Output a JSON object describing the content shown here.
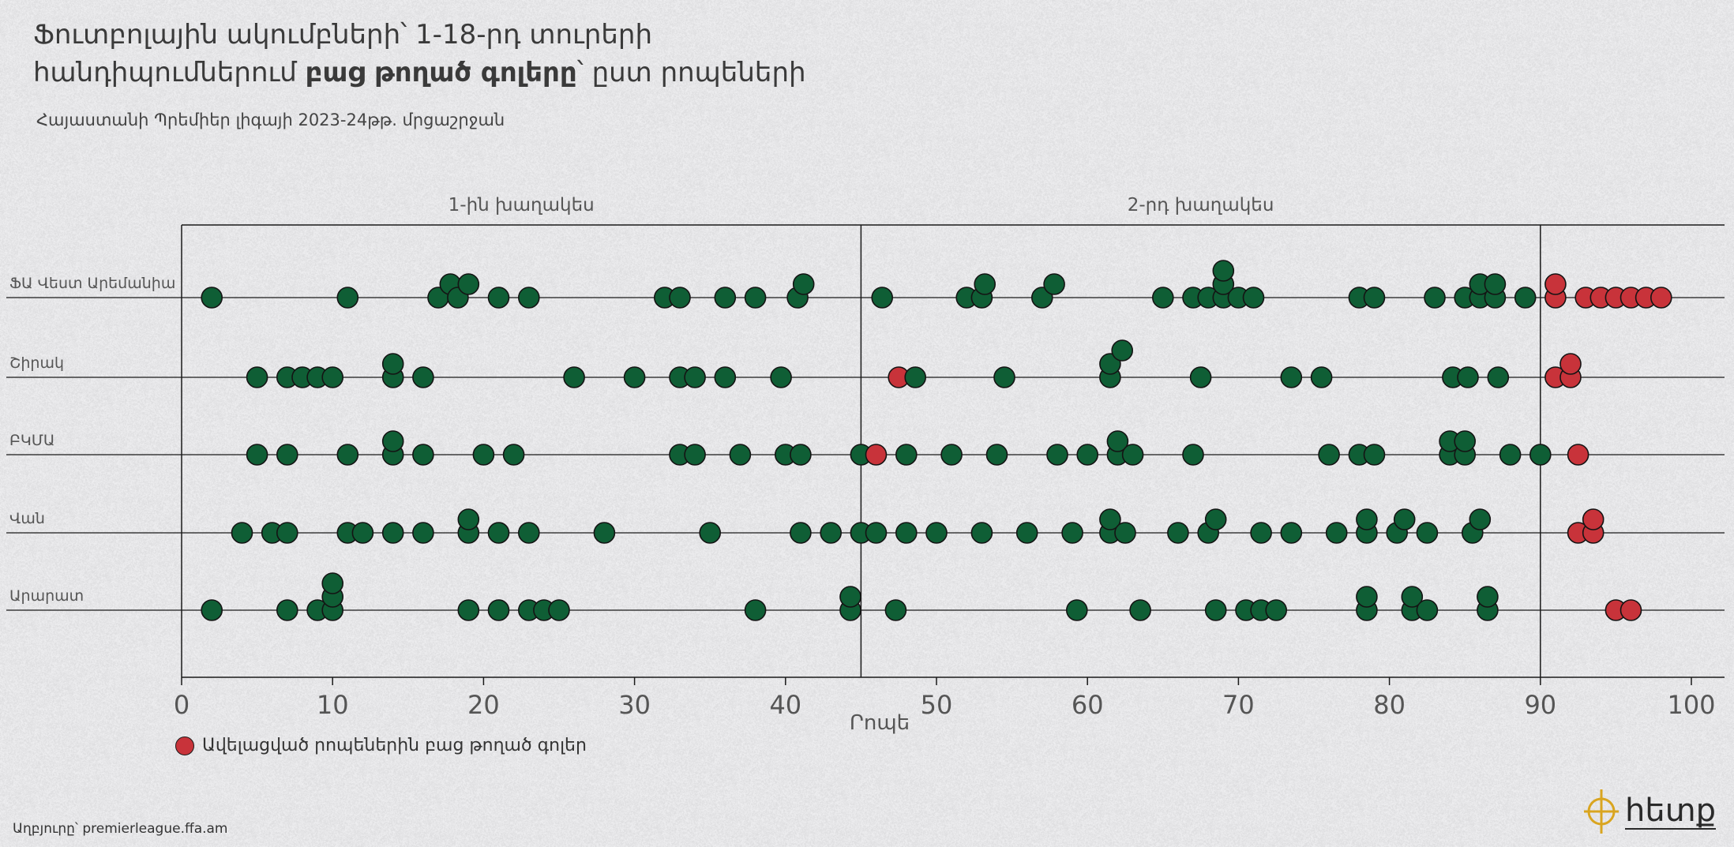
{
  "title": {
    "line1": "Ֆուտբոլային ակումբների՝ 1-18-րդ տուրերի",
    "line2_start": "հանդիպումներում ",
    "line2_bold": "բաց թողած գոլերը",
    "line2_end": "՝ ըստ րոպեների"
  },
  "subtitle": "Հայաստանի Պրեմիեր լիգայի 2023-24թթ. մրցաշրջան",
  "legend": {
    "label": "Ավելացված րոպեներին բաց թողած գոլեր"
  },
  "source": "Աղբյուրը՝ premierleague.ffa.am",
  "logo": {
    "text": "հետք"
  },
  "colors": {
    "regular": "#0f5e35",
    "added_time": "#c8333a",
    "background": "#e7e7e9",
    "line": "#1a1a1a"
  },
  "chart_data": {
    "type": "scatter",
    "xlabel": "Րոպե",
    "xlim": [
      0,
      102
    ],
    "xticks": [
      "0",
      "10",
      "20",
      "30",
      "40",
      "50",
      "60",
      "70",
      "80",
      "90",
      "100"
    ],
    "halves": [
      {
        "label": "1-ին խաղակես",
        "range": [
          0,
          45
        ]
      },
      {
        "label": "2-րդ խաղակես",
        "range": [
          45,
          90
        ]
      }
    ],
    "teams": [
      {
        "name": "ՖԱ Վեստ Արեմանիա",
        "goals": [
          2,
          11,
          17,
          17.8,
          18.3,
          19,
          21,
          23,
          32,
          33,
          36,
          38,
          40.8,
          41.2,
          46.4,
          52,
          53,
          53.2,
          57,
          57.8,
          65,
          67,
          68,
          69,
          69,
          69,
          70,
          71,
          78,
          79,
          83,
          85,
          86,
          86,
          87,
          87,
          89
        ],
        "added_time": [
          91,
          91,
          93,
          94,
          95,
          96,
          97,
          98
        ]
      },
      {
        "name": "Շիրակ",
        "goals": [
          5,
          7,
          8,
          9,
          10,
          14,
          14,
          16,
          26,
          30,
          33,
          34,
          36,
          39.7,
          48.6,
          54.5,
          61.5,
          61.5,
          62.3,
          67.5,
          73.5,
          75.5,
          84.2,
          85.2,
          87.2
        ],
        "added_time": [
          47.5,
          91,
          92,
          92
        ]
      },
      {
        "name": "ԲԿՄԱ",
        "goals": [
          5,
          7,
          11,
          14,
          14,
          16,
          20,
          22,
          33,
          34,
          37,
          40,
          41,
          45,
          48,
          51,
          54,
          58,
          60,
          62,
          62,
          63,
          67,
          76,
          78,
          79,
          84,
          84,
          85,
          85,
          88,
          90
        ],
        "added_time": [
          46,
          92.5
        ]
      },
      {
        "name": "Վան",
        "goals": [
          4,
          6,
          7,
          11,
          12,
          14,
          16,
          19,
          19,
          21,
          23,
          28,
          35,
          41,
          43,
          45,
          46,
          48,
          50,
          53,
          56,
          59,
          61.5,
          61.5,
          62.5,
          66,
          68,
          68.5,
          71.5,
          73.5,
          76.5,
          78.5,
          78.5,
          80.5,
          81,
          82.5,
          85.5,
          86
        ],
        "added_time": [
          92.5,
          93.5,
          93.5
        ]
      },
      {
        "name": "Արարատ",
        "goals": [
          2,
          7,
          9,
          10,
          10,
          10,
          19,
          21,
          23,
          24,
          25,
          38,
          44.3,
          44.3,
          47.3,
          59.3,
          63.5,
          68.5,
          70.5,
          71.5,
          72.5,
          78.5,
          78.5,
          81.5,
          81.5,
          82.5,
          86.5,
          86.5
        ],
        "added_time": [
          95,
          96
        ]
      }
    ]
  }
}
